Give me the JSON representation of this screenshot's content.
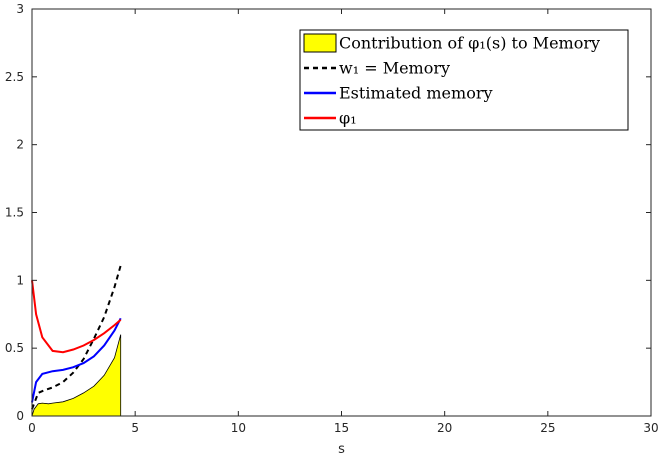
{
  "chart_data": {
    "type": "line",
    "xlabel": "s",
    "ylabel": "",
    "xlim": [
      0,
      30
    ],
    "ylim": [
      0,
      3
    ],
    "xticks": [
      "0",
      "5",
      "10",
      "15",
      "20",
      "25",
      "30"
    ],
    "yticks": [
      "0",
      "0.5",
      "1",
      "1.5",
      "2",
      "2.5",
      "3"
    ],
    "grid": false,
    "legend_position": "top-right",
    "legend": [
      "Contribution of φ₁(s) to Memory",
      "w₁ = Memory",
      "Estimated memory",
      "φ₁"
    ],
    "series": [
      {
        "name": "Contribution of φ₁(s) to Memory",
        "kind": "area",
        "color": "#ffff00",
        "x": [
          0,
          0.1,
          0.3,
          0.5,
          0.8,
          1.0,
          1.5,
          2.0,
          2.5,
          3.0,
          3.5,
          4.0,
          4.3
        ],
        "values": [
          0,
          0.05,
          0.09,
          0.095,
          0.09,
          0.095,
          0.105,
          0.13,
          0.17,
          0.22,
          0.3,
          0.43,
          0.6
        ]
      },
      {
        "name": "w₁ = Memory",
        "kind": "dashed",
        "color": "#000000",
        "x": [
          0.0,
          0.3,
          0.6,
          1.0,
          1.5,
          2.0,
          2.5,
          3.0,
          3.5,
          4.0,
          4.3
        ],
        "values": [
          0.05,
          0.17,
          0.19,
          0.21,
          0.25,
          0.32,
          0.42,
          0.57,
          0.73,
          0.95,
          1.11
        ]
      },
      {
        "name": "Estimated memory",
        "kind": "line",
        "color": "#0000ff",
        "x": [
          0,
          0.2,
          0.5,
          1.0,
          1.5,
          2.0,
          2.5,
          3.0,
          3.5,
          4.0,
          4.3
        ],
        "values": [
          0.1,
          0.25,
          0.31,
          0.33,
          0.34,
          0.36,
          0.39,
          0.44,
          0.52,
          0.63,
          0.72
        ]
      },
      {
        "name": "φ₁",
        "kind": "line",
        "color": "#ff0000",
        "x": [
          0,
          0.2,
          0.5,
          1.0,
          1.5,
          2.0,
          2.5,
          3.0,
          3.5,
          4.0,
          4.3
        ],
        "values": [
          1.0,
          0.75,
          0.58,
          0.48,
          0.47,
          0.49,
          0.52,
          0.56,
          0.61,
          0.67,
          0.71
        ]
      }
    ]
  }
}
